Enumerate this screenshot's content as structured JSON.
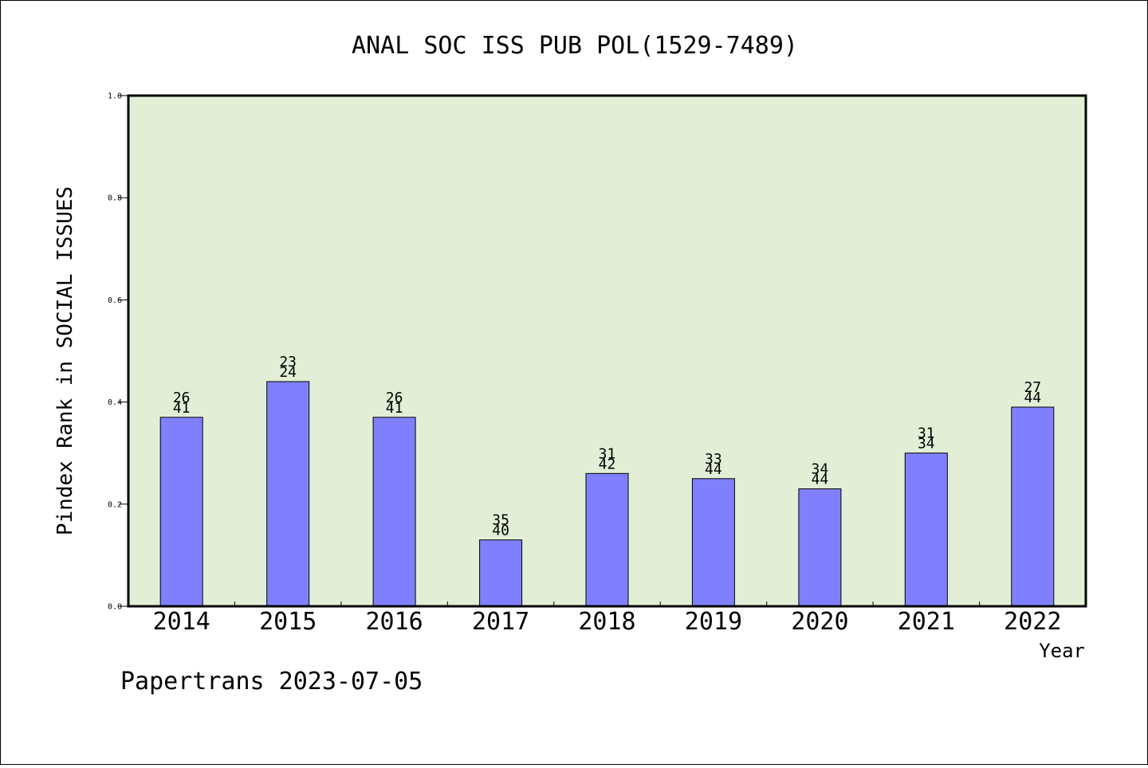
{
  "chart_data": {
    "type": "bar",
    "title": "ANAL SOC ISS PUB POL(1529-7489)",
    "xlabel": "Year",
    "ylabel": "Pindex Rank in SOCIAL ISSUES",
    "ylim": [
      0,
      1.0
    ],
    "yticks": [
      "0.0",
      "0.2",
      "0.4",
      "0.6",
      "0.8",
      "1.0"
    ],
    "grid": false,
    "categories": [
      "2014",
      "2015",
      "2016",
      "2017",
      "2018",
      "2019",
      "2020",
      "2021",
      "2022"
    ],
    "values": [
      0.37,
      0.44,
      0.37,
      0.13,
      0.26,
      0.25,
      0.23,
      0.3,
      0.39
    ],
    "labels_top": [
      "26",
      "23",
      "26",
      "35",
      "31",
      "33",
      "34",
      "31",
      "27"
    ],
    "labels_bottom": [
      "41",
      "24",
      "41",
      "40",
      "42",
      "44",
      "44",
      "34",
      "44"
    ],
    "colors": {
      "bar": "#8080ff",
      "plot_bg": "#e2efd6",
      "axes": "#000000"
    }
  },
  "footer": "Papertrans 2023-07-05"
}
